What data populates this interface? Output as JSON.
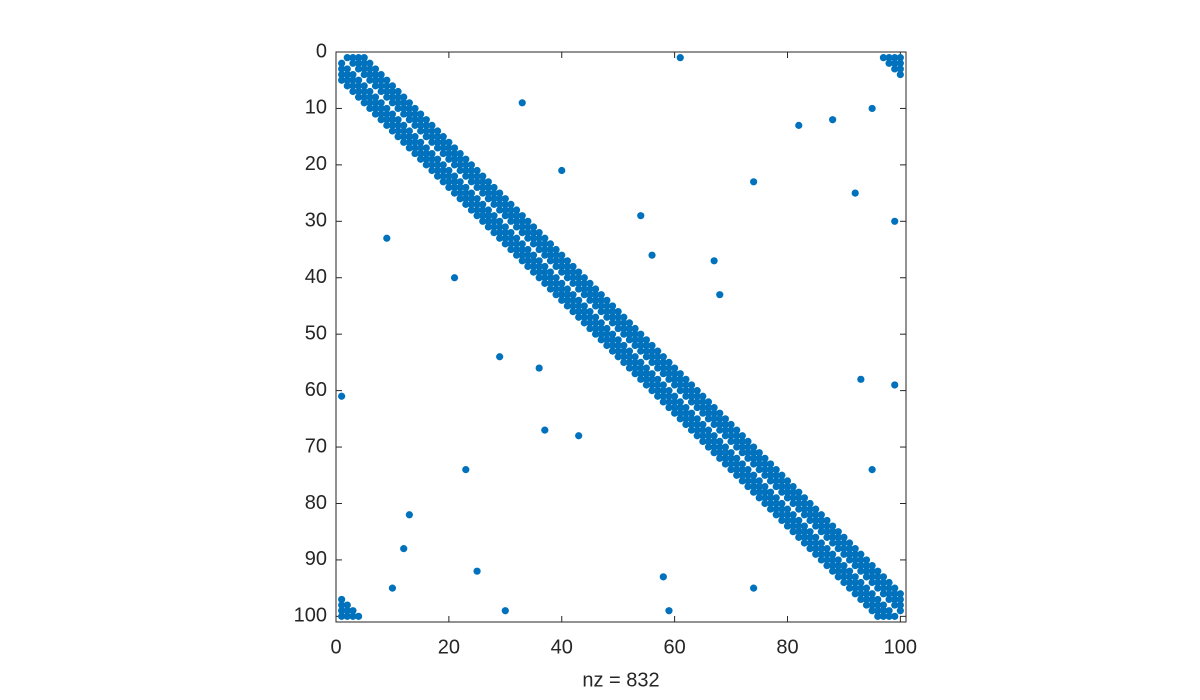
{
  "chart_data": {
    "type": "scatter",
    "xlabel": "nz = 832",
    "color": "#0072bd",
    "xlim": [
      0,
      101
    ],
    "ylim": [
      0,
      101
    ],
    "y_reversed": true,
    "xticks": [
      0,
      20,
      40,
      60,
      80,
      100
    ],
    "yticks": [
      0,
      10,
      20,
      30,
      40,
      50,
      60,
      70,
      80,
      90,
      100
    ],
    "rows": [
      {
        "row": 1,
        "cols": [
          2,
          3,
          4,
          5,
          61,
          97,
          98,
          99,
          100
        ]
      },
      {
        "row": 2,
        "cols": [
          1,
          3,
          4,
          5,
          6,
          98,
          99,
          100
        ]
      },
      {
        "row": 3,
        "cols": [
          1,
          2,
          4,
          5,
          6,
          7,
          99,
          100
        ]
      },
      {
        "row": 4,
        "cols": [
          1,
          2,
          3,
          5,
          6,
          7,
          8,
          100
        ]
      },
      {
        "row": 5,
        "cols": [
          1,
          2,
          3,
          4,
          6,
          7,
          8,
          9
        ]
      },
      {
        "row": 6,
        "cols": [
          2,
          3,
          4,
          5,
          7,
          8,
          9,
          10
        ]
      },
      {
        "row": 7,
        "cols": [
          3,
          4,
          5,
          6,
          8,
          9,
          10,
          11
        ]
      },
      {
        "row": 8,
        "cols": [
          4,
          5,
          6,
          7,
          9,
          10,
          11,
          12
        ]
      },
      {
        "row": 9,
        "cols": [
          5,
          6,
          7,
          8,
          10,
          11,
          12,
          13,
          33
        ]
      },
      {
        "row": 10,
        "cols": [
          6,
          7,
          8,
          9,
          11,
          12,
          13,
          14,
          95
        ]
      },
      {
        "row": 11,
        "cols": [
          7,
          8,
          9,
          10,
          12,
          13,
          14,
          15
        ]
      },
      {
        "row": 12,
        "cols": [
          8,
          9,
          10,
          11,
          13,
          14,
          15,
          16,
          88
        ]
      },
      {
        "row": 13,
        "cols": [
          9,
          10,
          11,
          12,
          14,
          15,
          16,
          17,
          82
        ]
      },
      {
        "row": 14,
        "cols": [
          10,
          11,
          12,
          13,
          15,
          16,
          17,
          18
        ]
      },
      {
        "row": 15,
        "cols": [
          11,
          12,
          13,
          14,
          16,
          17,
          18,
          19
        ]
      },
      {
        "row": 16,
        "cols": [
          12,
          13,
          14,
          15,
          17,
          18,
          19,
          20
        ]
      },
      {
        "row": 17,
        "cols": [
          13,
          14,
          15,
          16,
          18,
          19,
          20,
          21
        ]
      },
      {
        "row": 18,
        "cols": [
          14,
          15,
          16,
          17,
          19,
          20,
          21,
          22
        ]
      },
      {
        "row": 19,
        "cols": [
          15,
          16,
          17,
          18,
          20,
          21,
          22,
          23
        ]
      },
      {
        "row": 20,
        "cols": [
          16,
          17,
          18,
          19,
          21,
          22,
          23,
          24
        ]
      },
      {
        "row": 21,
        "cols": [
          17,
          18,
          19,
          20,
          22,
          23,
          24,
          25,
          40
        ]
      },
      {
        "row": 22,
        "cols": [
          18,
          19,
          20,
          21,
          23,
          24,
          25,
          26
        ]
      },
      {
        "row": 23,
        "cols": [
          19,
          20,
          21,
          22,
          24,
          25,
          26,
          27,
          74
        ]
      },
      {
        "row": 24,
        "cols": [
          20,
          21,
          22,
          23,
          25,
          26,
          27,
          28
        ]
      },
      {
        "row": 25,
        "cols": [
          21,
          22,
          23,
          24,
          26,
          27,
          28,
          29,
          92
        ]
      },
      {
        "row": 26,
        "cols": [
          22,
          23,
          24,
          25,
          27,
          28,
          29,
          30
        ]
      },
      {
        "row": 27,
        "cols": [
          23,
          24,
          25,
          26,
          28,
          29,
          30,
          31
        ]
      },
      {
        "row": 28,
        "cols": [
          24,
          25,
          26,
          27,
          29,
          30,
          31,
          32
        ]
      },
      {
        "row": 29,
        "cols": [
          25,
          26,
          27,
          28,
          30,
          31,
          32,
          33,
          54
        ]
      },
      {
        "row": 30,
        "cols": [
          26,
          27,
          28,
          29,
          31,
          32,
          33,
          34,
          99
        ]
      },
      {
        "row": 31,
        "cols": [
          27,
          28,
          29,
          30,
          32,
          33,
          34,
          35
        ]
      },
      {
        "row": 32,
        "cols": [
          28,
          29,
          30,
          31,
          33,
          34,
          35,
          36
        ]
      },
      {
        "row": 33,
        "cols": [
          9,
          29,
          30,
          31,
          32,
          34,
          35,
          36,
          37
        ]
      },
      {
        "row": 34,
        "cols": [
          30,
          31,
          32,
          33,
          35,
          36,
          37,
          38
        ]
      },
      {
        "row": 35,
        "cols": [
          31,
          32,
          33,
          34,
          36,
          37,
          38,
          39
        ]
      },
      {
        "row": 36,
        "cols": [
          32,
          33,
          34,
          35,
          37,
          38,
          39,
          40,
          56
        ]
      },
      {
        "row": 37,
        "cols": [
          33,
          34,
          35,
          36,
          38,
          39,
          40,
          41,
          67
        ]
      },
      {
        "row": 38,
        "cols": [
          34,
          35,
          36,
          37,
          39,
          40,
          41,
          42
        ]
      },
      {
        "row": 39,
        "cols": [
          35,
          36,
          37,
          38,
          40,
          41,
          42,
          43
        ]
      },
      {
        "row": 40,
        "cols": [
          21,
          36,
          37,
          38,
          39,
          41,
          42,
          43,
          44
        ]
      },
      {
        "row": 41,
        "cols": [
          37,
          38,
          39,
          40,
          42,
          43,
          44,
          45
        ]
      },
      {
        "row": 42,
        "cols": [
          38,
          39,
          40,
          41,
          43,
          44,
          45,
          46
        ]
      },
      {
        "row": 43,
        "cols": [
          39,
          40,
          41,
          42,
          44,
          45,
          46,
          47,
          68
        ]
      },
      {
        "row": 44,
        "cols": [
          40,
          41,
          42,
          43,
          45,
          46,
          47,
          48
        ]
      },
      {
        "row": 45,
        "cols": [
          41,
          42,
          43,
          44,
          46,
          47,
          48,
          49
        ]
      },
      {
        "row": 46,
        "cols": [
          42,
          43,
          44,
          45,
          47,
          48,
          49,
          50
        ]
      },
      {
        "row": 47,
        "cols": [
          43,
          44,
          45,
          46,
          48,
          49,
          50,
          51
        ]
      },
      {
        "row": 48,
        "cols": [
          44,
          45,
          46,
          47,
          49,
          50,
          51,
          52
        ]
      },
      {
        "row": 49,
        "cols": [
          45,
          46,
          47,
          48,
          50,
          51,
          52,
          53
        ]
      },
      {
        "row": 50,
        "cols": [
          46,
          47,
          48,
          49,
          51,
          52,
          53,
          54
        ]
      },
      {
        "row": 51,
        "cols": [
          47,
          48,
          49,
          50,
          52,
          53,
          54,
          55
        ]
      },
      {
        "row": 52,
        "cols": [
          48,
          49,
          50,
          51,
          53,
          54,
          55,
          56
        ]
      },
      {
        "row": 53,
        "cols": [
          49,
          50,
          51,
          52,
          54,
          55,
          56,
          57
        ]
      },
      {
        "row": 54,
        "cols": [
          29,
          50,
          51,
          52,
          53,
          55,
          56,
          57,
          58
        ]
      },
      {
        "row": 55,
        "cols": [
          51,
          52,
          53,
          54,
          56,
          57,
          58,
          59
        ]
      },
      {
        "row": 56,
        "cols": [
          36,
          52,
          53,
          54,
          55,
          57,
          58,
          59,
          60
        ]
      },
      {
        "row": 57,
        "cols": [
          53,
          54,
          55,
          56,
          58,
          59,
          60,
          61
        ]
      },
      {
        "row": 58,
        "cols": [
          54,
          55,
          56,
          57,
          59,
          60,
          61,
          62,
          93
        ]
      },
      {
        "row": 59,
        "cols": [
          55,
          56,
          57,
          58,
          60,
          61,
          62,
          63,
          99
        ]
      },
      {
        "row": 60,
        "cols": [
          56,
          57,
          58,
          59,
          61,
          62,
          63,
          64
        ]
      },
      {
        "row": 61,
        "cols": [
          1,
          57,
          58,
          59,
          60,
          62,
          63,
          64,
          65
        ]
      },
      {
        "row": 62,
        "cols": [
          58,
          59,
          60,
          61,
          63,
          64,
          65,
          66
        ]
      },
      {
        "row": 63,
        "cols": [
          59,
          60,
          61,
          62,
          64,
          65,
          66,
          67
        ]
      },
      {
        "row": 64,
        "cols": [
          60,
          61,
          62,
          63,
          65,
          66,
          67,
          68
        ]
      },
      {
        "row": 65,
        "cols": [
          61,
          62,
          63,
          64,
          66,
          67,
          68,
          69
        ]
      },
      {
        "row": 66,
        "cols": [
          62,
          63,
          64,
          65,
          67,
          68,
          69,
          70
        ]
      },
      {
        "row": 67,
        "cols": [
          37,
          63,
          64,
          65,
          66,
          68,
          69,
          70,
          71
        ]
      },
      {
        "row": 68,
        "cols": [
          43,
          64,
          65,
          66,
          67,
          69,
          70,
          71,
          72
        ]
      },
      {
        "row": 69,
        "cols": [
          65,
          66,
          67,
          68,
          70,
          71,
          72,
          73
        ]
      },
      {
        "row": 70,
        "cols": [
          66,
          67,
          68,
          69,
          71,
          72,
          73,
          74
        ]
      },
      {
        "row": 71,
        "cols": [
          67,
          68,
          69,
          70,
          72,
          73,
          74,
          75
        ]
      },
      {
        "row": 72,
        "cols": [
          68,
          69,
          70,
          71,
          73,
          74,
          75,
          76
        ]
      },
      {
        "row": 73,
        "cols": [
          69,
          70,
          71,
          72,
          74,
          75,
          76,
          77
        ]
      },
      {
        "row": 74,
        "cols": [
          23,
          70,
          71,
          72,
          73,
          75,
          76,
          77,
          78,
          95
        ]
      },
      {
        "row": 75,
        "cols": [
          71,
          72,
          73,
          74,
          76,
          77,
          78,
          79
        ]
      },
      {
        "row": 76,
        "cols": [
          72,
          73,
          74,
          75,
          77,
          78,
          79,
          80
        ]
      },
      {
        "row": 77,
        "cols": [
          73,
          74,
          75,
          76,
          78,
          79,
          80,
          81
        ]
      },
      {
        "row": 78,
        "cols": [
          74,
          75,
          76,
          77,
          79,
          80,
          81,
          82
        ]
      },
      {
        "row": 79,
        "cols": [
          75,
          76,
          77,
          78,
          80,
          81,
          82,
          83
        ]
      },
      {
        "row": 80,
        "cols": [
          76,
          77,
          78,
          79,
          81,
          82,
          83,
          84
        ]
      },
      {
        "row": 81,
        "cols": [
          77,
          78,
          79,
          80,
          82,
          83,
          84,
          85
        ]
      },
      {
        "row": 82,
        "cols": [
          13,
          78,
          79,
          80,
          81,
          83,
          84,
          85,
          86
        ]
      },
      {
        "row": 83,
        "cols": [
          79,
          80,
          81,
          82,
          84,
          85,
          86,
          87
        ]
      },
      {
        "row": 84,
        "cols": [
          80,
          81,
          82,
          83,
          85,
          86,
          87,
          88
        ]
      },
      {
        "row": 85,
        "cols": [
          81,
          82,
          83,
          84,
          86,
          87,
          88,
          89
        ]
      },
      {
        "row": 86,
        "cols": [
          82,
          83,
          84,
          85,
          87,
          88,
          89,
          90
        ]
      },
      {
        "row": 87,
        "cols": [
          83,
          84,
          85,
          86,
          88,
          89,
          90,
          91
        ]
      },
      {
        "row": 88,
        "cols": [
          12,
          84,
          85,
          86,
          87,
          89,
          90,
          91,
          92
        ]
      },
      {
        "row": 89,
        "cols": [
          85,
          86,
          87,
          88,
          90,
          91,
          92,
          93
        ]
      },
      {
        "row": 90,
        "cols": [
          86,
          87,
          88,
          89,
          91,
          92,
          93,
          94
        ]
      },
      {
        "row": 91,
        "cols": [
          87,
          88,
          89,
          90,
          92,
          93,
          94,
          95
        ]
      },
      {
        "row": 92,
        "cols": [
          25,
          88,
          89,
          90,
          91,
          93,
          94,
          95,
          96
        ]
      },
      {
        "row": 93,
        "cols": [
          58,
          89,
          90,
          91,
          92,
          94,
          95,
          96,
          97
        ]
      },
      {
        "row": 94,
        "cols": [
          90,
          91,
          92,
          93,
          95,
          96,
          97,
          98
        ]
      },
      {
        "row": 95,
        "cols": [
          10,
          74,
          91,
          92,
          93,
          94,
          96,
          97,
          98,
          99
        ]
      },
      {
        "row": 96,
        "cols": [
          92,
          93,
          94,
          95,
          97,
          98,
          99,
          100
        ]
      },
      {
        "row": 97,
        "cols": [
          1,
          93,
          94,
          95,
          96,
          98,
          99,
          100
        ]
      },
      {
        "row": 98,
        "cols": [
          1,
          2,
          94,
          95,
          96,
          97,
          99,
          100
        ]
      },
      {
        "row": 99,
        "cols": [
          1,
          2,
          3,
          30,
          59,
          95,
          96,
          97,
          98,
          100
        ]
      },
      {
        "row": 100,
        "cols": [
          1,
          2,
          3,
          4,
          96,
          97,
          98,
          99
        ]
      }
    ]
  }
}
